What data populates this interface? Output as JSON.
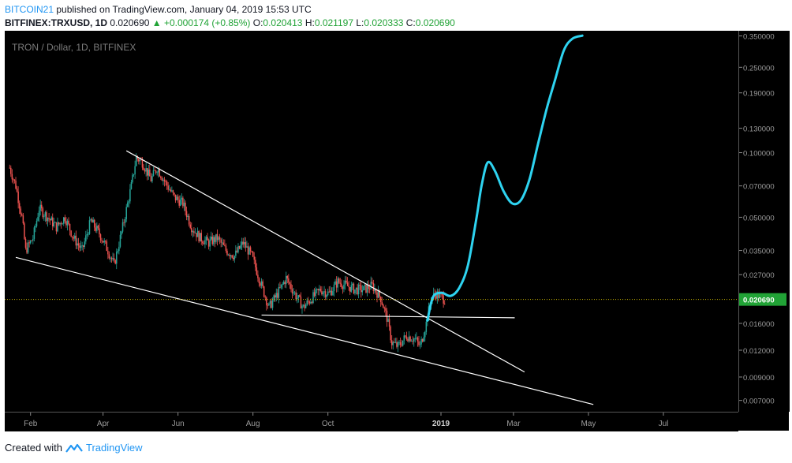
{
  "header": {
    "author": "BITCOIN21",
    "published_text": " published on TradingView.com, January 04, 2019 15:53 UTC",
    "symbol": "BITFINEX:TRXUSD, 1D",
    "last": "0.020690",
    "change": "▲ +0.000174 (+0.85%)",
    "o_label": "O:",
    "o_value": "0.020413",
    "h_label": "H:",
    "h_value": "0.021197",
    "l_label": "L:",
    "l_value": "0.020333",
    "c_label": "C:",
    "c_value": "0.020690"
  },
  "footer": {
    "created_with": "Created with",
    "brand": "TradingView"
  },
  "colors": {
    "background": "#000000",
    "up_candle": "#26a69a",
    "down_candle": "#ef5350",
    "trendline": "#ffffff",
    "projection": "#2ed3f0",
    "last_price_badge": "#21a336",
    "last_price_line": "#c8b400"
  },
  "chart_data": {
    "type": "candlestick",
    "title": "TRON / Dollar, 1D, BITFINEX",
    "y_scale": "log",
    "ylim": [
      0.0062,
      0.37
    ],
    "y_ticks": [
      {
        "v": 0.35,
        "label": "0.350000"
      },
      {
        "v": 0.25,
        "label": "0.250000"
      },
      {
        "v": 0.19,
        "label": "0.190000"
      },
      {
        "v": 0.13,
        "label": "0.130000"
      },
      {
        "v": 0.1,
        "label": "0.100000"
      },
      {
        "v": 0.07,
        "label": "0.070000"
      },
      {
        "v": 0.05,
        "label": "0.050000"
      },
      {
        "v": 0.035,
        "label": "0.035000"
      },
      {
        "v": 0.027,
        "label": "0.027000"
      },
      {
        "v": 0.016,
        "label": "0.016000"
      },
      {
        "v": 0.012,
        "label": "0.012000"
      },
      {
        "v": 0.009,
        "label": "0.009000"
      },
      {
        "v": 0.007,
        "label": "0.007000"
      }
    ],
    "x_ticks": [
      {
        "date": "2018-02-01",
        "label": "Feb",
        "bold": false
      },
      {
        "date": "2018-04-01",
        "label": "Apr",
        "bold": false
      },
      {
        "date": "2018-06-01",
        "label": "Jun",
        "bold": false
      },
      {
        "date": "2018-08-01",
        "label": "Aug",
        "bold": false
      },
      {
        "date": "2018-10-01",
        "label": "Oct",
        "bold": false
      },
      {
        "date": "2019-01-01",
        "label": "2019",
        "bold": true
      },
      {
        "date": "2019-03-01",
        "label": "Mar",
        "bold": false
      },
      {
        "date": "2019-05-01",
        "label": "May",
        "bold": false
      },
      {
        "date": "2019-07-01",
        "label": "Jul",
        "bold": false
      }
    ],
    "xlim": [
      "2018-01-11",
      "2019-08-31"
    ],
    "last_price": {
      "value": 0.02069,
      "label": "0.020690"
    },
    "price_path": [
      [
        "2018-01-15",
        0.085
      ],
      [
        "2018-01-20",
        0.07
      ],
      [
        "2018-01-25",
        0.05
      ],
      [
        "2018-01-28",
        0.035
      ],
      [
        "2018-02-03",
        0.04
      ],
      [
        "2018-02-08",
        0.055
      ],
      [
        "2018-02-15",
        0.05
      ],
      [
        "2018-02-22",
        0.045
      ],
      [
        "2018-03-01",
        0.05
      ],
      [
        "2018-03-08",
        0.04
      ],
      [
        "2018-03-15",
        0.035
      ],
      [
        "2018-03-22",
        0.048
      ],
      [
        "2018-03-29",
        0.042
      ],
      [
        "2018-04-05",
        0.035
      ],
      [
        "2018-04-10",
        0.03
      ],
      [
        "2018-04-17",
        0.045
      ],
      [
        "2018-04-24",
        0.07
      ],
      [
        "2018-04-28",
        0.095
      ],
      [
        "2018-05-03",
        0.09
      ],
      [
        "2018-05-10",
        0.075
      ],
      [
        "2018-05-15",
        0.085
      ],
      [
        "2018-05-22",
        0.072
      ],
      [
        "2018-05-29",
        0.062
      ],
      [
        "2018-06-05",
        0.058
      ],
      [
        "2018-06-12",
        0.045
      ],
      [
        "2018-06-19",
        0.04
      ],
      [
        "2018-06-26",
        0.038
      ],
      [
        "2018-07-03",
        0.04
      ],
      [
        "2018-07-10",
        0.035
      ],
      [
        "2018-07-17",
        0.033
      ],
      [
        "2018-07-24",
        0.038
      ],
      [
        "2018-07-31",
        0.033
      ],
      [
        "2018-08-07",
        0.025
      ],
      [
        "2018-08-14",
        0.019
      ],
      [
        "2018-08-21",
        0.022
      ],
      [
        "2018-08-28",
        0.026
      ],
      [
        "2018-09-04",
        0.022
      ],
      [
        "2018-09-11",
        0.019
      ],
      [
        "2018-09-18",
        0.021
      ],
      [
        "2018-09-25",
        0.023
      ],
      [
        "2018-10-02",
        0.022
      ],
      [
        "2018-10-09",
        0.025
      ],
      [
        "2018-10-16",
        0.024
      ],
      [
        "2018-10-23",
        0.023
      ],
      [
        "2018-10-30",
        0.023
      ],
      [
        "2018-11-06",
        0.024
      ],
      [
        "2018-11-13",
        0.021
      ],
      [
        "2018-11-18",
        0.017
      ],
      [
        "2018-11-22",
        0.013
      ],
      [
        "2018-11-27",
        0.0125
      ],
      [
        "2018-12-04",
        0.014
      ],
      [
        "2018-12-11",
        0.0135
      ],
      [
        "2018-12-15",
        0.0125
      ],
      [
        "2018-12-20",
        0.016
      ],
      [
        "2018-12-24",
        0.021
      ],
      [
        "2018-12-28",
        0.022
      ],
      [
        "2019-01-04",
        0.02069
      ]
    ],
    "trendlines": [
      {
        "from": [
          "2018-04-20",
          0.102
        ],
        "to": [
          "2019-03-10",
          0.0095
        ]
      },
      {
        "from": [
          "2018-01-20",
          0.0325
        ],
        "to": [
          "2019-05-05",
          0.0067
        ]
      },
      {
        "from": [
          "2018-08-08",
          0.0175
        ],
        "to": [
          "2019-03-02",
          0.017
        ]
      }
    ],
    "projection": [
      [
        "2018-12-21",
        0.0165
      ],
      [
        "2018-12-24",
        0.02
      ],
      [
        "2018-12-27",
        0.0218
      ],
      [
        "2019-01-02",
        0.0222
      ],
      [
        "2019-01-09",
        0.0215
      ],
      [
        "2019-01-16",
        0.0235
      ],
      [
        "2019-01-23",
        0.03
      ],
      [
        "2019-01-30",
        0.05
      ],
      [
        "2019-02-03",
        0.07
      ],
      [
        "2019-02-08",
        0.09
      ],
      [
        "2019-02-14",
        0.082
      ],
      [
        "2019-02-21",
        0.066
      ],
      [
        "2019-02-28",
        0.058
      ],
      [
        "2019-03-07",
        0.06
      ],
      [
        "2019-03-14",
        0.075
      ],
      [
        "2019-03-21",
        0.11
      ],
      [
        "2019-03-28",
        0.16
      ],
      [
        "2019-04-04",
        0.22
      ],
      [
        "2019-04-11",
        0.3
      ],
      [
        "2019-04-18",
        0.34
      ],
      [
        "2019-04-26",
        0.351
      ]
    ]
  }
}
